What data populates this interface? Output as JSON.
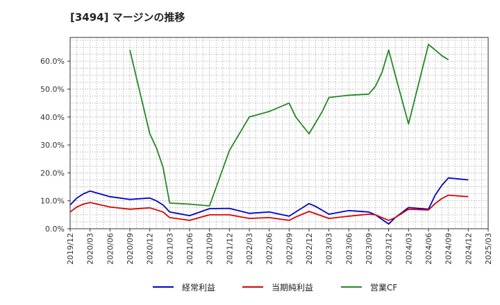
{
  "chart_data": {
    "type": "line",
    "title": "[3494]  マージンの推移",
    "xlabel": "",
    "ylabel": "",
    "ylim": [
      0,
      0.685
    ],
    "y_ticks": [
      "0.0%",
      "10.0%",
      "20.0%",
      "30.0%",
      "40.0%",
      "50.0%",
      "60.0%"
    ],
    "x_ticks": [
      "2019/12",
      "2020/03",
      "2020/06",
      "2020/09",
      "2020/12",
      "2021/03",
      "2021/06",
      "2021/09",
      "2021/12",
      "2022/03",
      "2022/06",
      "2022/09",
      "2022/12",
      "2023/03",
      "2023/06",
      "2023/09",
      "2023/12",
      "2024/03",
      "2024/06",
      "2024/09",
      "2024/12",
      "2025/03"
    ],
    "grid": true,
    "legend_position": "bottom",
    "series": [
      {
        "name": "経常利益",
        "color": "#0000cc",
        "points": [
          [
            "2019/12",
            0.085
          ],
          [
            "2020/01",
            0.11
          ],
          [
            "2020/02",
            0.125
          ],
          [
            "2020/03",
            0.135
          ],
          [
            "2020/06",
            0.115
          ],
          [
            "2020/09",
            0.105
          ],
          [
            "2020/12",
            0.11
          ],
          [
            "2021/01",
            0.1
          ],
          [
            "2021/02",
            0.085
          ],
          [
            "2021/03",
            0.06
          ],
          [
            "2021/06",
            0.047
          ],
          [
            "2021/09",
            0.072
          ],
          [
            "2021/12",
            0.073
          ],
          [
            "2022/03",
            0.055
          ],
          [
            "2022/06",
            0.06
          ],
          [
            "2022/09",
            0.045
          ],
          [
            "2022/10",
            0.06
          ],
          [
            "2022/12",
            0.09
          ],
          [
            "2023/01",
            0.08
          ],
          [
            "2023/03",
            0.052
          ],
          [
            "2023/06",
            0.065
          ],
          [
            "2023/09",
            0.06
          ],
          [
            "2023/10",
            0.05
          ],
          [
            "2023/12",
            0.017
          ],
          [
            "2024/01",
            0.04
          ],
          [
            "2024/03",
            0.076
          ],
          [
            "2024/06",
            0.07
          ],
          [
            "2024/07",
            0.12
          ],
          [
            "2024/08",
            0.155
          ],
          [
            "2024/09",
            0.182
          ],
          [
            "2024/12",
            0.175
          ]
        ]
      },
      {
        "name": "当期純利益",
        "color": "#dd0000",
        "points": [
          [
            "2019/12",
            0.06
          ],
          [
            "2020/01",
            0.078
          ],
          [
            "2020/02",
            0.088
          ],
          [
            "2020/03",
            0.094
          ],
          [
            "2020/06",
            0.078
          ],
          [
            "2020/09",
            0.07
          ],
          [
            "2020/12",
            0.075
          ],
          [
            "2021/02",
            0.06
          ],
          [
            "2021/03",
            0.04
          ],
          [
            "2021/06",
            0.03
          ],
          [
            "2021/09",
            0.05
          ],
          [
            "2021/12",
            0.05
          ],
          [
            "2022/03",
            0.037
          ],
          [
            "2022/06",
            0.04
          ],
          [
            "2022/09",
            0.03
          ],
          [
            "2022/10",
            0.042
          ],
          [
            "2022/12",
            0.062
          ],
          [
            "2023/03",
            0.037
          ],
          [
            "2023/06",
            0.045
          ],
          [
            "2023/09",
            0.052
          ],
          [
            "2023/10",
            0.05
          ],
          [
            "2023/12",
            0.03
          ],
          [
            "2024/01",
            0.04
          ],
          [
            "2024/03",
            0.07
          ],
          [
            "2024/06",
            0.067
          ],
          [
            "2024/07",
            0.09
          ],
          [
            "2024/08",
            0.108
          ],
          [
            "2024/09",
            0.12
          ],
          [
            "2024/12",
            0.115
          ]
        ]
      },
      {
        "name": "営業CF",
        "color": "#228822",
        "points": [
          [
            "2020/09",
            0.64
          ],
          [
            "2020/12",
            0.34
          ],
          [
            "2021/01",
            0.29
          ],
          [
            "2021/02",
            0.22
          ],
          [
            "2021/03",
            0.092
          ],
          [
            "2021/06",
            0.088
          ],
          [
            "2021/09",
            0.082
          ],
          [
            "2021/12",
            0.28
          ],
          [
            "2022/02",
            0.36
          ],
          [
            "2022/03",
            0.4
          ],
          [
            "2022/06",
            0.42
          ],
          [
            "2022/09",
            0.45
          ],
          [
            "2022/10",
            0.4
          ],
          [
            "2022/12",
            0.34
          ],
          [
            "2023/02",
            0.42
          ],
          [
            "2023/03",
            0.47
          ],
          [
            "2023/06",
            0.478
          ],
          [
            "2023/09",
            0.482
          ],
          [
            "2023/10",
            0.51
          ],
          [
            "2023/11",
            0.56
          ],
          [
            "2023/12",
            0.64
          ],
          [
            "2024/01",
            0.55
          ],
          [
            "2024/03",
            0.375
          ],
          [
            "2024/06",
            0.66
          ],
          [
            "2024/07",
            0.64
          ],
          [
            "2024/08",
            0.62
          ],
          [
            "2024/09",
            0.605
          ]
        ]
      }
    ]
  }
}
